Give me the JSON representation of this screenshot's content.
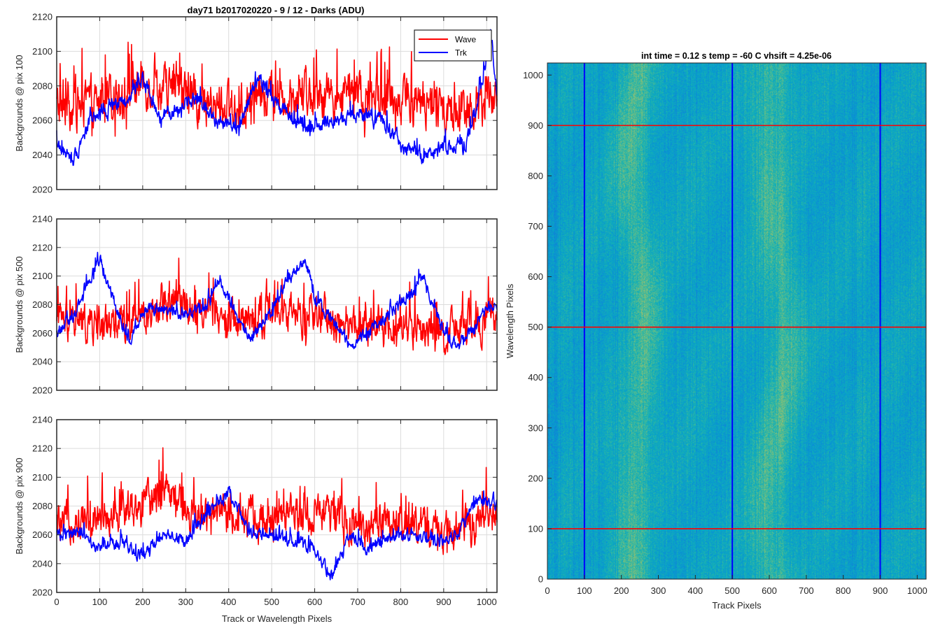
{
  "figure": {
    "title": "day71 b2017020220 - 9 / 12 - Darks (ADU)",
    "right_title": "int time = 0.12 s   temp = -60 C   vhsift = 4.25e-06"
  },
  "colors": {
    "wave": "#ff0000",
    "trk": "#0000ff",
    "axis": "#262626",
    "grid": "#dcdcdc"
  },
  "chart_data": [
    {
      "type": "line",
      "ylabel": "Backgrounds @ pix 100",
      "xlabel": "",
      "xlim": [
        0,
        1024
      ],
      "ylim": [
        2020,
        2120
      ],
      "xticks": [
        0,
        100,
        200,
        300,
        400,
        500,
        600,
        700,
        800,
        900,
        1000
      ],
      "yticks": [
        2020,
        2040,
        2060,
        2080,
        2100,
        2120
      ],
      "grid": true,
      "legend": {
        "placement": "top-right",
        "entries": [
          "Wave",
          "Trk"
        ]
      },
      "series": [
        {
          "name": "Wave",
          "color": "#ff0000",
          "base": 2072,
          "noise": 26,
          "anchors": [
            [
              0,
              2068
            ],
            [
              100,
              2070
            ],
            [
              200,
              2082
            ],
            [
              300,
              2075
            ],
            [
              400,
              2066
            ],
            [
              500,
              2075
            ],
            [
              600,
              2078
            ],
            [
              700,
              2072
            ],
            [
              800,
              2074
            ],
            [
              900,
              2066
            ],
            [
              1024,
              2072
            ]
          ]
        },
        {
          "name": "Trk",
          "color": "#0000ff",
          "base": 2062,
          "noise": 8,
          "anchors": [
            [
              0,
              2045
            ],
            [
              40,
              2038
            ],
            [
              80,
              2062
            ],
            [
              130,
              2068
            ],
            [
              170,
              2072
            ],
            [
              200,
              2085
            ],
            [
              240,
              2062
            ],
            [
              280,
              2066
            ],
            [
              330,
              2072
            ],
            [
              370,
              2060
            ],
            [
              420,
              2055
            ],
            [
              470,
              2085
            ],
            [
              500,
              2072
            ],
            [
              530,
              2066
            ],
            [
              560,
              2058
            ],
            [
              600,
              2055
            ],
            [
              650,
              2060
            ],
            [
              700,
              2062
            ],
            [
              750,
              2062
            ],
            [
              800,
              2045
            ],
            [
              850,
              2038
            ],
            [
              900,
              2045
            ],
            [
              950,
              2045
            ],
            [
              980,
              2070
            ],
            [
              1010,
              2112
            ],
            [
              1024,
              2072
            ]
          ]
        }
      ]
    },
    {
      "type": "line",
      "ylabel": "Backgrounds @ pix 500",
      "xlabel": "",
      "xlim": [
        0,
        1024
      ],
      "ylim": [
        2020,
        2140
      ],
      "xticks": [
        0,
        100,
        200,
        300,
        400,
        500,
        600,
        700,
        800,
        900,
        1000
      ],
      "yticks": [
        2020,
        2040,
        2060,
        2080,
        2100,
        2120,
        2140
      ],
      "grid": true,
      "series": [
        {
          "name": "Wave",
          "color": "#ff0000",
          "base": 2072,
          "noise": 26,
          "anchors": [
            [
              0,
              2068
            ],
            [
              100,
              2066
            ],
            [
              200,
              2072
            ],
            [
              260,
              2085
            ],
            [
              300,
              2082
            ],
            [
              400,
              2068
            ],
            [
              500,
              2074
            ],
            [
              600,
              2070
            ],
            [
              700,
              2066
            ],
            [
              800,
              2065
            ],
            [
              900,
              2060
            ],
            [
              1024,
              2070
            ]
          ]
        },
        {
          "name": "Trk",
          "color": "#0000ff",
          "base": 2070,
          "noise": 8,
          "anchors": [
            [
              0,
              2060
            ],
            [
              40,
              2072
            ],
            [
              70,
              2095
            ],
            [
              100,
              2112
            ],
            [
              130,
              2085
            ],
            [
              170,
              2052
            ],
            [
              200,
              2075
            ],
            [
              250,
              2078
            ],
            [
              300,
              2072
            ],
            [
              350,
              2080
            ],
            [
              380,
              2098
            ],
            [
              420,
              2072
            ],
            [
              450,
              2055
            ],
            [
              500,
              2075
            ],
            [
              530,
              2095
            ],
            [
              580,
              2110
            ],
            [
              600,
              2085
            ],
            [
              640,
              2070
            ],
            [
              680,
              2052
            ],
            [
              720,
              2060
            ],
            [
              780,
              2075
            ],
            [
              830,
              2088
            ],
            [
              850,
              2100
            ],
            [
              880,
              2075
            ],
            [
              920,
              2052
            ],
            [
              960,
              2060
            ],
            [
              1000,
              2075
            ],
            [
              1024,
              2078
            ]
          ]
        }
      ]
    },
    {
      "type": "line",
      "ylabel": "Backgrounds @ pix 900",
      "xlabel": "Track or Wavelength Pixels",
      "xlim": [
        0,
        1024
      ],
      "ylim": [
        2020,
        2140
      ],
      "xticks": [
        0,
        100,
        200,
        300,
        400,
        500,
        600,
        700,
        800,
        900,
        1000
      ],
      "yticks": [
        2020,
        2040,
        2060,
        2080,
        2100,
        2120,
        2140
      ],
      "grid": true,
      "series": [
        {
          "name": "Wave",
          "color": "#ff0000",
          "base": 2072,
          "noise": 26,
          "anchors": [
            [
              0,
              2068
            ],
            [
              100,
              2075
            ],
            [
              200,
              2080
            ],
            [
              260,
              2095
            ],
            [
              300,
              2072
            ],
            [
              400,
              2075
            ],
            [
              500,
              2070
            ],
            [
              600,
              2075
            ],
            [
              700,
              2066
            ],
            [
              800,
              2070
            ],
            [
              900,
              2063
            ],
            [
              1024,
              2075
            ]
          ]
        },
        {
          "name": "Trk",
          "color": "#0000ff",
          "base": 2058,
          "noise": 8,
          "anchors": [
            [
              0,
              2060
            ],
            [
              50,
              2062
            ],
            [
              100,
              2050
            ],
            [
              150,
              2055
            ],
            [
              200,
              2045
            ],
            [
              250,
              2062
            ],
            [
              300,
              2055
            ],
            [
              350,
              2075
            ],
            [
              400,
              2090
            ],
            [
              450,
              2062
            ],
            [
              500,
              2058
            ],
            [
              550,
              2055
            ],
            [
              600,
              2050
            ],
            [
              640,
              2030
            ],
            [
              680,
              2060
            ],
            [
              720,
              2050
            ],
            [
              780,
              2058
            ],
            [
              820,
              2060
            ],
            [
              880,
              2055
            ],
            [
              930,
              2060
            ],
            [
              980,
              2085
            ],
            [
              1024,
              2080
            ]
          ]
        }
      ]
    },
    {
      "type": "heatmap",
      "title": "int time = 0.12 s   temp = -60 C   vhsift = 4.25e-06",
      "xlabel": "Track Pixels",
      "ylabel": "Wavelength Pixels",
      "xlim": [
        0,
        1024
      ],
      "ylim": [
        0,
        1024
      ],
      "xticks": [
        0,
        100,
        200,
        300,
        400,
        500,
        600,
        700,
        800,
        900,
        1000
      ],
      "yticks": [
        0,
        100,
        200,
        300,
        400,
        500,
        600,
        700,
        800,
        900,
        1000
      ],
      "colormap": "parula",
      "bright_band_track_pixels": [
        [
          190,
          300
        ],
        [
          560,
          680
        ]
      ],
      "marker_lines": {
        "vertical": {
          "color": "#0000ff",
          "track_pixels": [
            100,
            500,
            900
          ]
        },
        "horizontal": {
          "color": "#ff0000",
          "wavelength_pixels": [
            100,
            500,
            900
          ]
        }
      }
    }
  ]
}
